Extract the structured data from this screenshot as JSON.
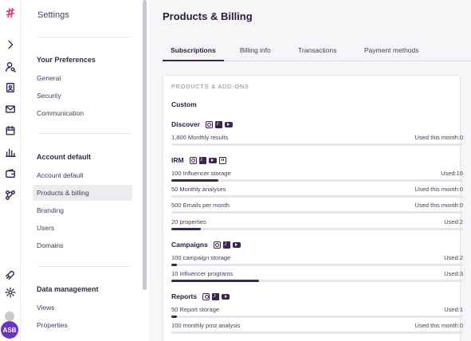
{
  "settings": {
    "title": "Settings",
    "sections": [
      {
        "heading": "Your Preferences",
        "items": [
          "General",
          "Security",
          "Communication"
        ]
      },
      {
        "heading": "Account default",
        "items": [
          "Account default",
          "Products & billing",
          "Branding",
          "Users",
          "Domains"
        ]
      },
      {
        "heading": "Data management",
        "items": [
          "Views",
          "Properties"
        ]
      }
    ],
    "active_item": "Products & billing"
  },
  "user": {
    "initials": "ASB"
  },
  "main": {
    "title": "Products & Billing",
    "tabs": [
      "Subscriptions",
      "Billing info",
      "Transactions",
      "Payment methods"
    ],
    "active_tab": "Subscriptions",
    "section_caption": "PRODUCTS & ADD-ONS",
    "plan_name": "Custom",
    "groups": [
      {
        "name": "Discover",
        "icons": [
          "instagram-icon",
          "tiktok-icon",
          "youtube-icon"
        ],
        "metrics": [
          {
            "label": "1,800 Monthly results",
            "usage": "Used this month:0",
            "fraction": 0
          }
        ]
      },
      {
        "name": "IRM",
        "icons": [
          "instagram-icon",
          "tiktok-icon",
          "youtube-icon",
          "twitch-icon"
        ],
        "metrics": [
          {
            "label": "100 Influencer storage",
            "usage": "Used:16",
            "fraction": 0.16
          },
          {
            "label": "50 Monthly analyses",
            "usage": "Used this month:0",
            "fraction": 0
          },
          {
            "label": "500 Emails per month",
            "usage": "Used this month:0",
            "fraction": 0
          },
          {
            "label": "20 properties",
            "usage": "Used:2",
            "fraction": 0.1
          }
        ]
      },
      {
        "name": "Campaigns",
        "icons": [
          "instagram-icon",
          "tiktok-icon",
          "youtube-icon"
        ],
        "metrics": [
          {
            "label": "100 campaign storage",
            "usage": "Used:2",
            "fraction": 0.02
          },
          {
            "label": "10 Influencer programs",
            "usage": "Used:3",
            "fraction": 0.3
          }
        ]
      },
      {
        "name": "Reports",
        "icons": [
          "instagram-icon",
          "tiktok-icon",
          "youtube-icon"
        ],
        "metrics": [
          {
            "label": "50 Report storage",
            "usage": "Used:1",
            "fraction": 0.02
          },
          {
            "label": "100 monthly post analysis",
            "usage": "Used this month:0",
            "fraction": 0
          }
        ]
      }
    ]
  },
  "colors": {
    "accent": "#3b2650",
    "brand": "#e8305a",
    "avatar": "#6a35c6",
    "active_bg": "#ecebf0"
  }
}
